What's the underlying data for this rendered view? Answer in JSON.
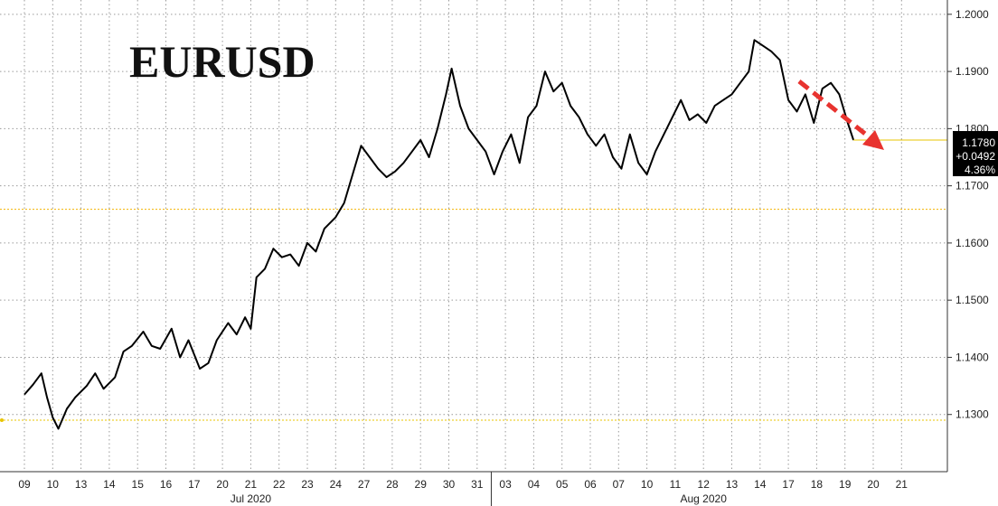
{
  "chart_data": {
    "type": "line",
    "title": "EURUSD",
    "ylim": [
      1.12,
      1.2025
    ],
    "grid": true,
    "y_ticks": [
      "1.1300",
      "1.1400",
      "1.1500",
      "1.1600",
      "1.1700",
      "1.1800",
      "1.1900",
      "1.2000"
    ],
    "x_ticks": [
      "09",
      "10",
      "13",
      "14",
      "15",
      "16",
      "17",
      "20",
      "21",
      "22",
      "23",
      "24",
      "27",
      "28",
      "29",
      "30",
      "31",
      "03",
      "04",
      "05",
      "06",
      "07",
      "10",
      "11",
      "12",
      "13",
      "14",
      "17",
      "18",
      "19",
      "20",
      "21"
    ],
    "months": [
      {
        "label": "Jul 2020",
        "start": 0,
        "end": 16
      },
      {
        "label": "Aug 2020",
        "start": 17,
        "end": 31
      }
    ],
    "reference_lines": [
      {
        "value": 1.1659,
        "color": "#f2b300"
      },
      {
        "value": 1.129,
        "color": "#e8c400"
      }
    ],
    "last": {
      "price": "1.1780",
      "change": "+0.0492",
      "pct": "4.36%"
    },
    "series": [
      {
        "color": "#000000",
        "points": [
          [
            0,
            1.1335
          ],
          [
            0.3,
            1.1352
          ],
          [
            0.6,
            1.1372
          ],
          [
            0.8,
            1.133
          ],
          [
            1.0,
            1.1295
          ],
          [
            1.2,
            1.1275
          ],
          [
            1.5,
            1.131
          ],
          [
            1.8,
            1.133
          ],
          [
            2.2,
            1.135
          ],
          [
            2.5,
            1.1372
          ],
          [
            2.8,
            1.1345
          ],
          [
            3.2,
            1.1365
          ],
          [
            3.5,
            1.141
          ],
          [
            3.8,
            1.142
          ],
          [
            4.2,
            1.1445
          ],
          [
            4.5,
            1.142
          ],
          [
            4.8,
            1.1415
          ],
          [
            5.2,
            1.145
          ],
          [
            5.5,
            1.14
          ],
          [
            5.8,
            1.143
          ],
          [
            6.2,
            1.138
          ],
          [
            6.5,
            1.139
          ],
          [
            6.8,
            1.143
          ],
          [
            7.2,
            1.146
          ],
          [
            7.5,
            1.144
          ],
          [
            7.8,
            1.147
          ],
          [
            8.0,
            1.145
          ],
          [
            8.2,
            1.154
          ],
          [
            8.5,
            1.1555
          ],
          [
            8.8,
            1.159
          ],
          [
            9.1,
            1.1575
          ],
          [
            9.4,
            1.158
          ],
          [
            9.7,
            1.156
          ],
          [
            10.0,
            1.16
          ],
          [
            10.3,
            1.1585
          ],
          [
            10.6,
            1.1625
          ],
          [
            11.0,
            1.1645
          ],
          [
            11.3,
            1.167
          ],
          [
            11.6,
            1.172
          ],
          [
            11.9,
            1.177
          ],
          [
            12.2,
            1.175
          ],
          [
            12.5,
            1.173
          ],
          [
            12.8,
            1.1715
          ],
          [
            13.1,
            1.1725
          ],
          [
            13.4,
            1.174
          ],
          [
            13.7,
            1.176
          ],
          [
            14.0,
            1.178
          ],
          [
            14.3,
            1.175
          ],
          [
            14.6,
            1.18
          ],
          [
            14.9,
            1.186
          ],
          [
            15.1,
            1.1905
          ],
          [
            15.4,
            1.184
          ],
          [
            15.7,
            1.18
          ],
          [
            16.0,
            1.178
          ],
          [
            16.3,
            1.176
          ],
          [
            16.6,
            1.172
          ],
          [
            16.9,
            1.176
          ],
          [
            17.2,
            1.179
          ],
          [
            17.5,
            1.174
          ],
          [
            17.8,
            1.182
          ],
          [
            18.1,
            1.184
          ],
          [
            18.4,
            1.19
          ],
          [
            18.7,
            1.1865
          ],
          [
            19.0,
            1.188
          ],
          [
            19.3,
            1.184
          ],
          [
            19.6,
            1.182
          ],
          [
            19.9,
            1.179
          ],
          [
            20.2,
            1.177
          ],
          [
            20.5,
            1.179
          ],
          [
            20.8,
            1.175
          ],
          [
            21.1,
            1.173
          ],
          [
            21.4,
            1.179
          ],
          [
            21.7,
            1.174
          ],
          [
            22.0,
            1.172
          ],
          [
            22.3,
            1.176
          ],
          [
            22.6,
            1.179
          ],
          [
            22.9,
            1.182
          ],
          [
            23.2,
            1.185
          ],
          [
            23.5,
            1.1815
          ],
          [
            23.8,
            1.1825
          ],
          [
            24.1,
            1.181
          ],
          [
            24.4,
            1.184
          ],
          [
            24.7,
            1.185
          ],
          [
            25.0,
            1.186
          ],
          [
            25.3,
            1.188
          ],
          [
            25.6,
            1.19
          ],
          [
            25.8,
            1.1955
          ],
          [
            26.1,
            1.1945
          ],
          [
            26.4,
            1.1935
          ],
          [
            26.7,
            1.192
          ],
          [
            27.0,
            1.185
          ],
          [
            27.3,
            1.183
          ],
          [
            27.6,
            1.186
          ],
          [
            27.9,
            1.181
          ],
          [
            28.2,
            1.187
          ],
          [
            28.5,
            1.188
          ],
          [
            28.8,
            1.186
          ],
          [
            29.1,
            1.181
          ],
          [
            29.3,
            1.178
          ]
        ]
      }
    ]
  }
}
